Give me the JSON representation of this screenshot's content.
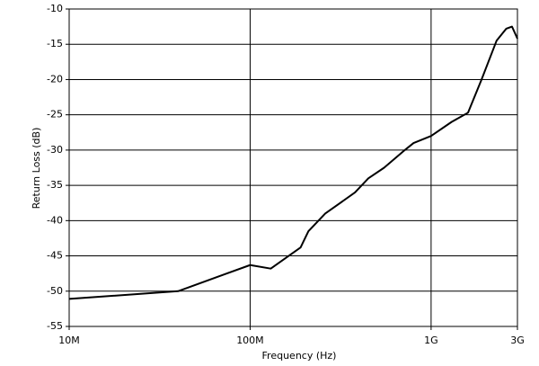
{
  "chart_data": {
    "type": "line",
    "x_label": "Frequency (Hz)",
    "y_label": "Return Loss (dB)",
    "x": [
      10000000,
      40000000,
      100000000,
      130000000,
      190000000,
      210000000,
      260000000,
      380000000,
      450000000,
      550000000,
      700000000,
      800000000,
      1000000000,
      1300000000,
      1600000000,
      1900000000,
      2300000000,
      2600000000,
      2800000000,
      3000000000
    ],
    "values": [
      -51.1,
      -50,
      -46.3,
      -46.8,
      -43.8,
      -41.5,
      -39,
      -36,
      -34,
      -32.5,
      -30.2,
      -29,
      -28,
      -26,
      -24.7,
      -20,
      -14.5,
      -12.8,
      -12.5,
      -14.2
    ],
    "color": "#000000",
    "xscale": "log",
    "xlim": [
      10000000,
      3000000000
    ],
    "xticks": [
      {
        "value": 10000000,
        "label": "10M"
      },
      {
        "value": 100000000,
        "label": "100M"
      },
      {
        "value": 1000000000,
        "label": "1G"
      },
      {
        "value": 3000000000,
        "label": "3G"
      }
    ],
    "ylim": [
      -55,
      -10
    ],
    "yticks": [
      -55,
      -50,
      -45,
      -40,
      -35,
      -30,
      -25,
      -20,
      -15,
      -10
    ],
    "grid": true
  }
}
